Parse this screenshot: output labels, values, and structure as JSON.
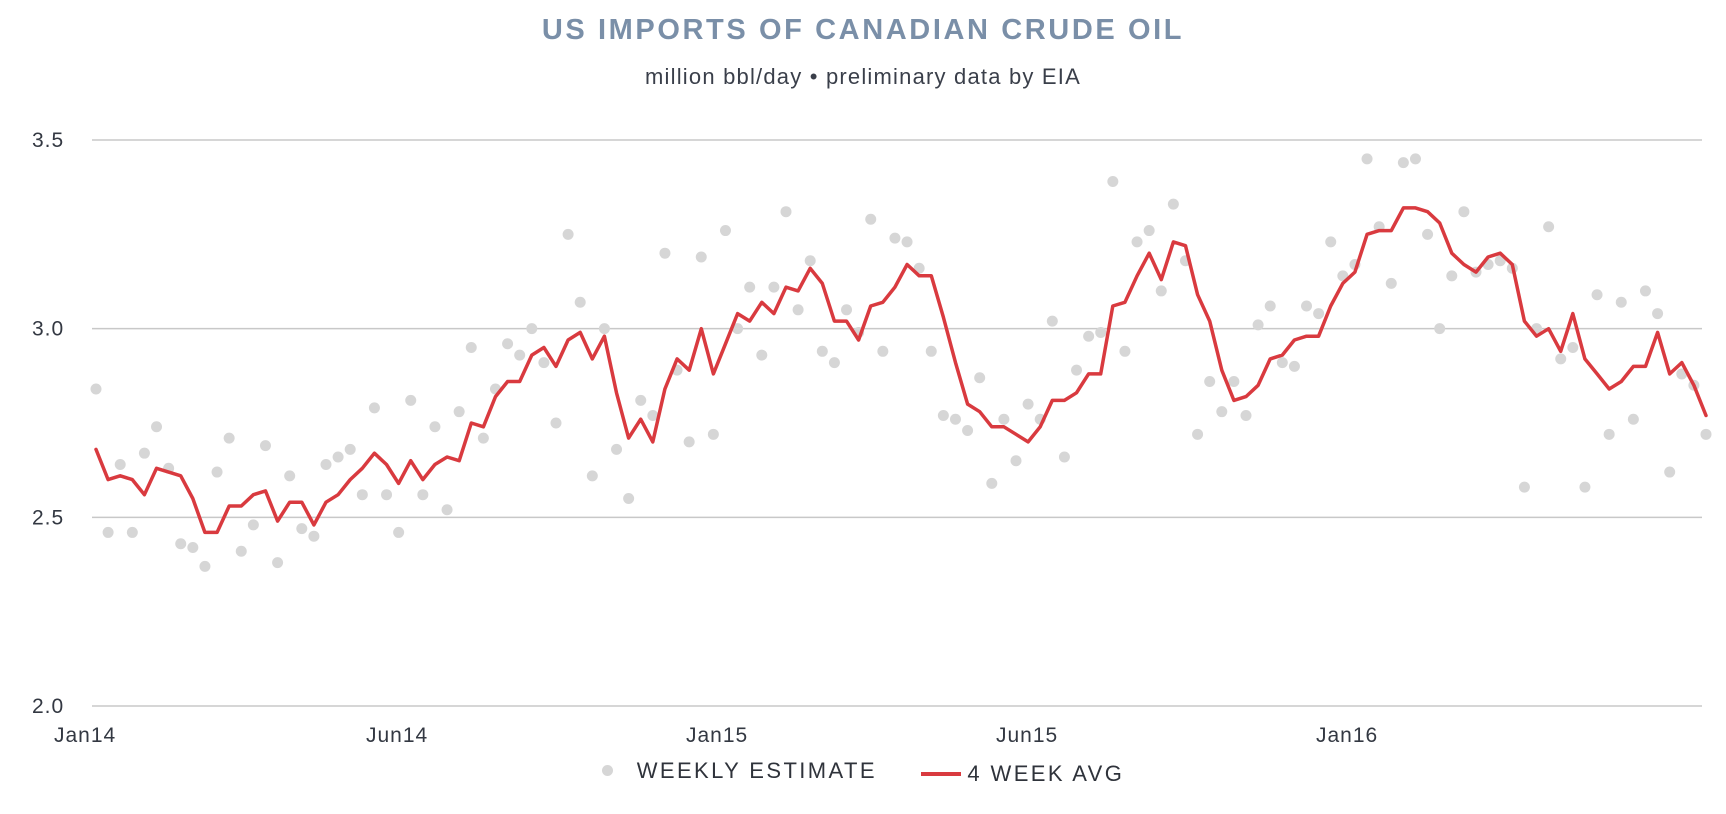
{
  "colors": {
    "title": "#7a8fa8",
    "line": "#d93a3f",
    "dots": "#d6d6d6",
    "grid": "#c8c8c8"
  },
  "chart_data": {
    "type": "line",
    "title": "US IMPORTS OF CANADIAN CRUDE OIL",
    "subtitle": "million bbl/day • preliminary data by EIA",
    "xlabel": "",
    "ylabel": "",
    "ylim": [
      2.0,
      3.5
    ],
    "yticks": [
      "3.5",
      "3.0",
      "2.5",
      "2.0"
    ],
    "xticks": [
      "Jan14",
      "Jun14",
      "Jan15",
      "Jun15",
      "Jan16"
    ],
    "grid": true,
    "legend_position": "bottom-center",
    "series": [
      {
        "name": "WEEKLY ESTIMATE",
        "style": "dots",
        "values": [
          2.84,
          2.46,
          2.64,
          2.46,
          2.67,
          2.74,
          2.63,
          2.43,
          2.42,
          2.37,
          2.62,
          2.71,
          2.41,
          2.48,
          2.69,
          2.38,
          2.61,
          2.47,
          2.45,
          2.64,
          2.66,
          2.68,
          2.56,
          2.79,
          2.56,
          2.46,
          2.81,
          2.56,
          2.74,
          2.52,
          2.78,
          2.95,
          2.71,
          2.84,
          2.96,
          2.93,
          3.0,
          2.91,
          2.75,
          3.25,
          3.07,
          2.61,
          3.0,
          2.68,
          2.55,
          2.81,
          2.77,
          3.2,
          2.89,
          2.7,
          3.19,
          2.72,
          3.26,
          3.0,
          3.11,
          2.93,
          3.11,
          3.31,
          3.05,
          3.18,
          2.94,
          2.91,
          3.05,
          2.99,
          3.29,
          2.94,
          3.24,
          3.23,
          3.16,
          2.94,
          2.77,
          2.76,
          2.73,
          2.87,
          2.59,
          2.76,
          2.65,
          2.8,
          2.76,
          3.02,
          2.66,
          2.89,
          2.98,
          2.99,
          3.39,
          2.94,
          3.23,
          3.26,
          3.1,
          3.33,
          3.18,
          2.72,
          2.86,
          2.78,
          2.86,
          2.77,
          3.01,
          3.06,
          2.91,
          2.9,
          3.06,
          3.04,
          3.23,
          3.14,
          3.17,
          3.45,
          3.27,
          3.12,
          3.44,
          3.45,
          3.25,
          3.0,
          3.14,
          3.31,
          3.15,
          3.17,
          3.18,
          3.16,
          2.58,
          3.0,
          3.27,
          2.92,
          2.95,
          2.58,
          3.09,
          2.72,
          3.07,
          2.76,
          3.1,
          3.04,
          2.62,
          2.88,
          2.85,
          2.72
        ]
      },
      {
        "name": "4 WEEK AVG",
        "style": "line",
        "values": [
          2.68,
          2.6,
          2.61,
          2.6,
          2.56,
          2.63,
          2.62,
          2.61,
          2.55,
          2.46,
          2.46,
          2.53,
          2.53,
          2.56,
          2.57,
          2.49,
          2.54,
          2.54,
          2.48,
          2.54,
          2.56,
          2.6,
          2.63,
          2.67,
          2.64,
          2.59,
          2.65,
          2.6,
          2.64,
          2.66,
          2.65,
          2.75,
          2.74,
          2.82,
          2.86,
          2.86,
          2.93,
          2.95,
          2.9,
          2.97,
          2.99,
          2.92,
          2.98,
          2.83,
          2.71,
          2.76,
          2.7,
          2.84,
          2.92,
          2.89,
          3.0,
          2.88,
          2.96,
          3.04,
          3.02,
          3.07,
          3.04,
          3.11,
          3.1,
          3.16,
          3.12,
          3.02,
          3.02,
          2.97,
          3.06,
          3.07,
          3.11,
          3.17,
          3.14,
          3.14,
          3.03,
          2.91,
          2.8,
          2.78,
          2.74,
          2.74,
          2.72,
          2.7,
          2.74,
          2.81,
          2.81,
          2.83,
          2.88,
          2.88,
          3.06,
          3.07,
          3.14,
          3.2,
          3.13,
          3.23,
          3.22,
          3.09,
          3.02,
          2.89,
          2.81,
          2.82,
          2.85,
          2.92,
          2.93,
          2.97,
          2.98,
          2.98,
          3.06,
          3.12,
          3.15,
          3.25,
          3.26,
          3.26,
          3.32,
          3.32,
          3.31,
          3.28,
          3.2,
          3.17,
          3.15,
          3.19,
          3.2,
          3.17,
          3.02,
          2.98,
          3.0,
          2.94,
          3.04,
          2.92,
          2.88,
          2.84,
          2.86,
          2.9,
          2.9,
          2.99,
          2.88,
          2.91,
          2.85,
          2.77
        ]
      }
    ]
  }
}
